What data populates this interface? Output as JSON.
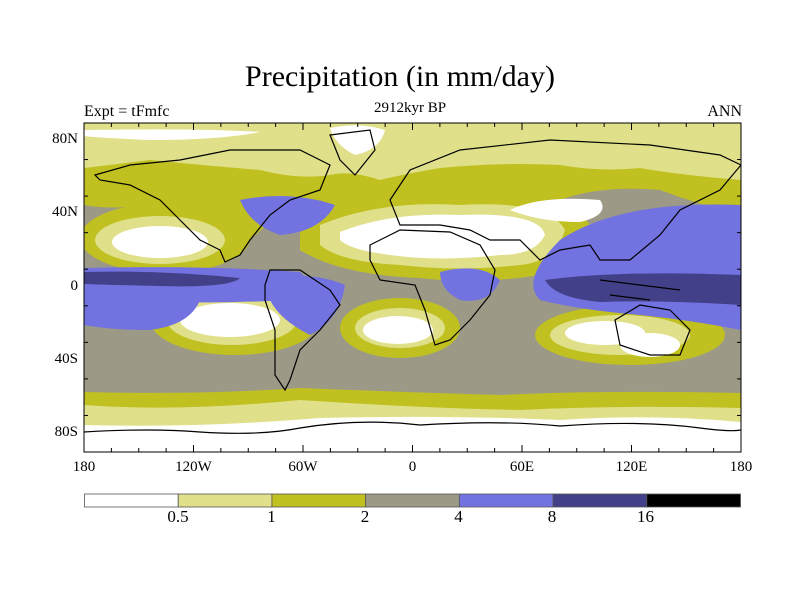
{
  "title": "Precipitation (in mm/day)",
  "subtitle_center": "2912kyr BP",
  "subtitle_left": "Expt = tFmfc",
  "subtitle_right": "ANN",
  "lat_labels": [
    "80N",
    "40N",
    "0",
    "40S",
    "80S"
  ],
  "lon_labels": [
    "180",
    "120W",
    "60W",
    "0",
    "60E",
    "120E",
    "180"
  ],
  "colorbar": {
    "levels": [
      "0.5",
      "1",
      "2",
      "4",
      "8",
      "16"
    ],
    "colors": [
      "#ffffff",
      "#e0e08a",
      "#c0c020",
      "#9c9a86",
      "#7272e0",
      "#424088",
      "#000000"
    ]
  }
}
